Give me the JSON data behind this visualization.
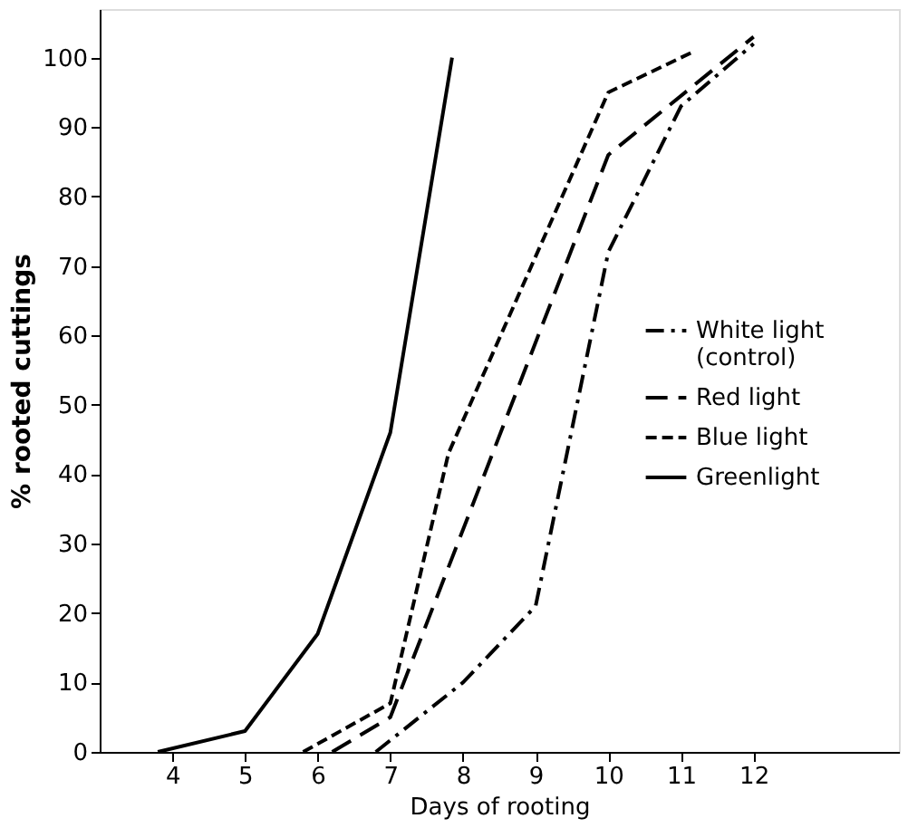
{
  "chart_data": {
    "type": "line",
    "xlabel": "Days of rooting",
    "ylabel": "% rooted cuttings",
    "xlim": [
      3,
      14
    ],
    "xticks": [
      4,
      5,
      6,
      7,
      8,
      9,
      10,
      11,
      12
    ],
    "ylim": [
      0,
      107
    ],
    "yticks": [
      0,
      10,
      20,
      30,
      40,
      50,
      60,
      70,
      80,
      90,
      100
    ],
    "grid": false,
    "legend": "right",
    "marker": "none",
    "series": [
      {
        "name": "White light (control)",
        "color": "#000000",
        "line_style": "dashdot",
        "x": [
          6.8,
          8,
          9,
          10,
          11,
          12
        ],
        "values": [
          0,
          10,
          21,
          72,
          93,
          102
        ]
      },
      {
        "name": "Red light",
        "color": "#000000",
        "line_style": "dashed",
        "x": [
          6.2,
          7,
          10,
          12
        ],
        "values": [
          0,
          5,
          86,
          103
        ]
      },
      {
        "name": "Blue light",
        "color": "#000000",
        "line_style": "dotted",
        "x": [
          5.8,
          7,
          7.8,
          10,
          11.2
        ],
        "values": [
          0,
          7,
          43,
          95,
          101
        ]
      },
      {
        "name": "Greenlight",
        "color": "#000000",
        "line_style": "solid",
        "x": [
          3.8,
          5,
          6,
          7,
          7.85
        ],
        "values": [
          0,
          3,
          17,
          46,
          100
        ]
      }
    ]
  }
}
